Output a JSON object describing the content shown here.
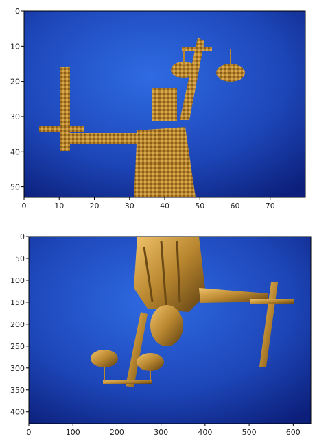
{
  "chart_data": [
    {
      "type": "image",
      "subject": "bronze Lady Justice statue, pixelated low-resolution version",
      "orientation": "upright",
      "xlim": [
        0,
        80
      ],
      "ylim": [
        53,
        0
      ],
      "x_ticks": [
        0,
        10,
        20,
        30,
        40,
        50,
        60,
        70
      ],
      "y_ticks": [
        0,
        10,
        20,
        30,
        40,
        50
      ],
      "colors": {
        "background_center": "#2f6be3",
        "background_edge": "#0c1f7a",
        "statue": "#b8862f"
      }
    },
    {
      "type": "image",
      "subject": "bronze Lady Justice statue, full resolution, flipped vertically",
      "orientation": "upside-down",
      "xlim": [
        0,
        640
      ],
      "ylim": [
        427,
        0
      ],
      "x_ticks": [
        0,
        100,
        200,
        300,
        400,
        500,
        600
      ],
      "y_ticks": [
        0,
        50,
        100,
        150,
        200,
        250,
        300,
        350,
        400
      ],
      "colors": {
        "background_center": "#2f6be3",
        "background_edge": "#0c1f7a",
        "statue": "#b8862f"
      }
    }
  ]
}
